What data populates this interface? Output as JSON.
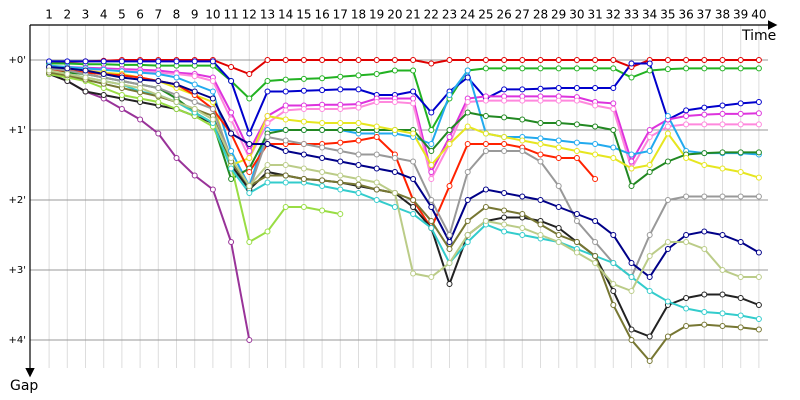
{
  "chart_data": {
    "type": "line",
    "xlabel": "Time",
    "ylabel": "Gap",
    "categories": [
      "1",
      "2",
      "3",
      "4",
      "5",
      "6",
      "7",
      "8",
      "9",
      "10",
      "11",
      "12",
      "13",
      "14",
      "15",
      "16",
      "17",
      "18",
      "19",
      "20",
      "21",
      "22",
      "23",
      "24",
      "25",
      "26",
      "27",
      "28",
      "29",
      "30",
      "31",
      "32",
      "33",
      "34",
      "35",
      "36",
      "37",
      "38",
      "39",
      "40"
    ],
    "ylim": [
      -0.5,
      4.4
    ],
    "y_inverted": true,
    "grid": true,
    "yticks": [
      {
        "value": 0,
        "label": "+0'"
      },
      {
        "value": 1,
        "label": "+1'"
      },
      {
        "value": 2,
        "label": "+2'"
      },
      {
        "value": 3,
        "label": "+3'"
      },
      {
        "value": 4,
        "label": "+4'"
      }
    ],
    "series": [
      {
        "color": "#e00000",
        "values": [
          0.05,
          0.03,
          0.02,
          0.01,
          0,
          0,
          0,
          0,
          0,
          0,
          0.1,
          0.2,
          0,
          0,
          0,
          0,
          0,
          0,
          0,
          0,
          0,
          0.05,
          0,
          0,
          0,
          0,
          0,
          0,
          0,
          0,
          0,
          0,
          0.1,
          0,
          0,
          0,
          0,
          0,
          0,
          0
        ]
      },
      {
        "color": "#22b222",
        "values": [
          0.05,
          0.05,
          0.06,
          0.06,
          0.07,
          0.07,
          0.08,
          0.08,
          0.08,
          0.08,
          0.3,
          0.55,
          0.3,
          0.28,
          0.27,
          0.26,
          0.24,
          0.22,
          0.2,
          0.15,
          0.15,
          1.0,
          0.55,
          0.15,
          0.12,
          0.12,
          0.12,
          0.12,
          0.12,
          0.12,
          0.12,
          0.12,
          0.25,
          0.15,
          0.13,
          0.12,
          0.12,
          0.12,
          0.12,
          0.12
        ]
      },
      {
        "color": "#0000cc",
        "values": [
          0.02,
          0.02,
          0.02,
          0.02,
          0.02,
          0.02,
          0.02,
          0.02,
          0.02,
          0.02,
          0.3,
          1.05,
          0.45,
          0.45,
          0.44,
          0.43,
          0.42,
          0.42,
          0.5,
          0.5,
          0.45,
          0.75,
          0.45,
          0.25,
          0.55,
          0.42,
          0.42,
          0.41,
          0.4,
          0.4,
          0.4,
          0.4,
          0.05,
          0.05,
          0.85,
          0.72,
          0.68,
          0.65,
          0.62,
          0.6
        ]
      },
      {
        "color": "#dd33dd",
        "values": [
          0.1,
          0.1,
          0.11,
          0.12,
          0.13,
          0.14,
          0.15,
          0.18,
          0.2,
          0.25,
          0.75,
          1.3,
          0.8,
          0.65,
          0.65,
          0.64,
          0.64,
          0.63,
          0.55,
          0.55,
          0.55,
          1.6,
          1.1,
          0.55,
          0.52,
          0.52,
          0.52,
          0.52,
          0.52,
          0.53,
          0.6,
          0.62,
          1.45,
          1.0,
          0.85,
          0.8,
          0.78,
          0.77,
          0.77,
          0.76
        ]
      },
      {
        "color": "#ff88dd",
        "values": [
          0.12,
          0.12,
          0.13,
          0.14,
          0.15,
          0.16,
          0.18,
          0.2,
          0.23,
          0.3,
          0.85,
          1.4,
          0.9,
          0.72,
          0.7,
          0.7,
          0.7,
          0.68,
          0.6,
          0.6,
          0.62,
          1.7,
          1.2,
          0.6,
          0.58,
          0.58,
          0.58,
          0.58,
          0.58,
          0.58,
          0.65,
          0.7,
          1.55,
          1.1,
          0.95,
          0.92,
          0.92,
          0.92,
          0.92,
          0.92
        ]
      },
      {
        "color": "#22aaee",
        "values": [
          0.08,
          0.1,
          0.12,
          0.14,
          0.16,
          0.18,
          0.2,
          0.25,
          0.35,
          0.45,
          1.3,
          1.8,
          1.0,
          1.0,
          1.0,
          1.0,
          1.0,
          1.05,
          1.05,
          1.05,
          1.1,
          1.2,
          0.5,
          0.15,
          1.05,
          1.1,
          1.1,
          1.12,
          1.15,
          1.18,
          1.2,
          1.25,
          1.35,
          1.3,
          0.8,
          1.3,
          1.33,
          1.33,
          1.33,
          1.35
        ]
      },
      {
        "color": "#228822",
        "values": [
          0.15,
          0.18,
          0.2,
          0.25,
          0.3,
          0.35,
          0.4,
          0.55,
          0.75,
          0.9,
          1.7,
          1.55,
          1.05,
          1.0,
          1.0,
          1.0,
          1.0,
          1.0,
          1.0,
          1.0,
          1.0,
          1.3,
          1.0,
          0.75,
          0.8,
          0.82,
          0.85,
          0.9,
          0.9,
          0.92,
          0.95,
          1.0,
          1.8,
          1.6,
          1.45,
          1.35,
          1.33,
          1.32,
          1.32,
          1.32
        ]
      },
      {
        "color": "#e6e620",
        "values": [
          0.1,
          0.12,
          0.15,
          0.18,
          0.2,
          0.25,
          0.3,
          0.4,
          0.5,
          0.6,
          1.5,
          1.4,
          0.8,
          0.85,
          0.88,
          0.9,
          0.9,
          0.9,
          0.95,
          1.0,
          1.05,
          1.5,
          1.2,
          0.95,
          1.05,
          1.1,
          1.15,
          1.2,
          1.25,
          1.3,
          1.35,
          1.4,
          1.55,
          1.5,
          1.05,
          1.4,
          1.5,
          1.55,
          1.6,
          1.68
        ]
      },
      {
        "color": "#993399",
        "values": [
          0.2,
          0.3,
          0.45,
          0.55,
          0.7,
          0.85,
          1.05,
          1.4,
          1.65,
          1.85,
          2.6,
          4.0,
          null,
          null,
          null,
          null,
          null,
          null,
          null,
          null,
          null,
          null,
          null,
          null,
          null,
          null,
          null,
          null,
          null,
          null,
          null,
          null,
          null,
          null,
          null,
          null,
          null,
          null,
          null,
          null
        ]
      },
      {
        "color": "#ff2200",
        "values": [
          0.15,
          0.15,
          0.18,
          0.2,
          0.22,
          0.25,
          0.3,
          0.35,
          0.5,
          0.7,
          1.05,
          1.6,
          1.2,
          1.2,
          1.2,
          1.2,
          1.18,
          1.15,
          1.1,
          1.35,
          2.0,
          2.4,
          1.8,
          1.2,
          1.2,
          1.2,
          1.25,
          1.35,
          1.4,
          1.4,
          1.7,
          null,
          null,
          null,
          null,
          null,
          null,
          null,
          null,
          null
        ]
      },
      {
        "color": "#999999",
        "values": [
          0.12,
          0.15,
          0.2,
          0.25,
          0.3,
          0.35,
          0.4,
          0.5,
          0.6,
          0.7,
          1.4,
          1.85,
          1.1,
          1.15,
          1.2,
          1.25,
          1.3,
          1.35,
          1.35,
          1.4,
          1.45,
          2.0,
          2.5,
          1.6,
          1.3,
          1.3,
          1.3,
          1.45,
          1.8,
          2.3,
          2.6,
          2.9,
          3.1,
          2.5,
          2.0,
          1.95,
          1.95,
          1.95,
          1.95,
          1.95
        ]
      },
      {
        "color": "#222222",
        "values": [
          0.2,
          0.3,
          0.45,
          0.5,
          0.55,
          0.6,
          0.65,
          0.7,
          0.8,
          0.9,
          1.5,
          1.85,
          1.6,
          1.65,
          1.7,
          1.72,
          1.75,
          1.8,
          1.85,
          1.9,
          2.1,
          2.4,
          3.2,
          2.5,
          2.3,
          2.25,
          2.25,
          2.3,
          2.4,
          2.6,
          2.8,
          3.3,
          3.85,
          3.95,
          3.5,
          3.4,
          3.35,
          3.35,
          3.4,
          3.5
        ]
      },
      {
        "color": "#99dd44",
        "values": [
          0.2,
          0.25,
          0.3,
          0.4,
          0.5,
          0.55,
          0.6,
          0.7,
          0.8,
          0.95,
          1.5,
          2.6,
          2.45,
          2.1,
          2.1,
          2.15,
          2.2,
          null,
          null,
          null,
          null,
          null,
          null,
          null,
          null,
          null,
          null,
          null,
          null,
          null,
          null,
          null,
          null,
          null,
          null,
          null,
          null,
          null,
          null,
          null
        ]
      },
      {
        "color": "#33cccc",
        "values": [
          0.15,
          0.2,
          0.25,
          0.3,
          0.35,
          0.45,
          0.5,
          0.6,
          0.75,
          0.9,
          1.55,
          1.9,
          1.75,
          1.75,
          1.75,
          1.8,
          1.85,
          1.9,
          2.0,
          2.1,
          2.2,
          2.4,
          2.9,
          2.6,
          2.35,
          2.45,
          2.5,
          2.55,
          2.6,
          2.7,
          2.8,
          2.9,
          3.1,
          3.3,
          3.45,
          3.55,
          3.6,
          3.62,
          3.65,
          3.7
        ]
      },
      {
        "color": "#777733",
        "values": [
          0.18,
          0.22,
          0.28,
          0.34,
          0.4,
          0.46,
          0.52,
          0.6,
          0.7,
          0.8,
          1.45,
          1.8,
          1.65,
          1.65,
          1.7,
          1.72,
          1.75,
          1.78,
          1.85,
          1.9,
          2.0,
          2.3,
          2.7,
          2.3,
          2.1,
          2.15,
          2.2,
          2.35,
          2.5,
          2.6,
          2.8,
          3.5,
          4.0,
          4.3,
          3.95,
          3.8,
          3.78,
          3.8,
          3.82,
          3.85
        ]
      },
      {
        "color": "#000088",
        "values": [
          0.1,
          0.12,
          0.15,
          0.2,
          0.25,
          0.28,
          0.3,
          0.35,
          0.45,
          0.55,
          1.05,
          1.2,
          1.2,
          1.3,
          1.35,
          1.4,
          1.45,
          1.5,
          1.55,
          1.6,
          1.7,
          2.1,
          2.6,
          2.0,
          1.85,
          1.9,
          1.95,
          2.0,
          2.1,
          2.2,
          2.3,
          2.5,
          2.9,
          3.1,
          2.7,
          2.5,
          2.45,
          2.5,
          2.6,
          2.75
        ]
      },
      {
        "color": "#bbcc88",
        "values": [
          0.15,
          0.2,
          0.25,
          0.3,
          0.35,
          0.4,
          0.5,
          0.6,
          0.7,
          0.85,
          1.4,
          1.8,
          1.5,
          1.5,
          1.55,
          1.6,
          1.65,
          1.7,
          1.75,
          1.9,
          3.05,
          3.1,
          2.9,
          2.5,
          2.3,
          2.35,
          2.4,
          2.5,
          2.6,
          2.75,
          2.9,
          3.2,
          3.3,
          2.8,
          2.6,
          2.6,
          2.7,
          3.0,
          3.1,
          3.1
        ]
      }
    ]
  }
}
